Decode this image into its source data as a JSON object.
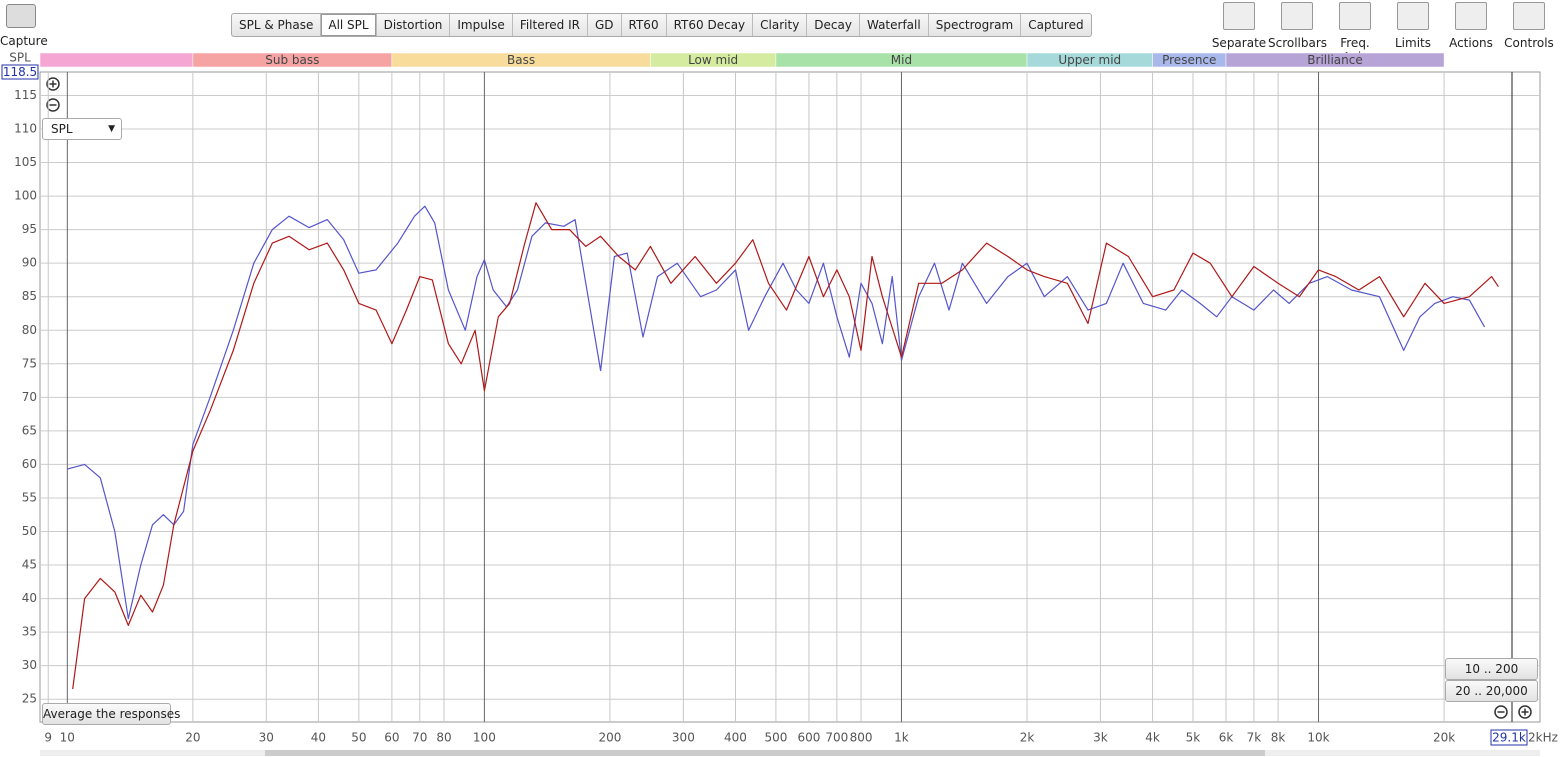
{
  "toolbar": {
    "capture": "Capture",
    "tabs": [
      "SPL & Phase",
      "All SPL",
      "Distortion",
      "Impulse",
      "Filtered IR",
      "GD",
      "RT60",
      "RT60 Decay",
      "Clarity",
      "Decay",
      "Waterfall",
      "Spectrogram",
      "Captured"
    ],
    "selected_tab": "All SPL",
    "tools": [
      "Separate",
      "Scrollbars",
      "Freq. Axis",
      "Limits",
      "Actions",
      "Controls"
    ]
  },
  "controls": {
    "y_axis_name": "SPL",
    "dropdown": "SPL",
    "average_button": "Average the responses",
    "range_buttons": [
      "10 .. 200",
      "20 .. 20,000"
    ],
    "freq_end": "29.1k",
    "freq_unit": "2kHz"
  },
  "chart_data": {
    "type": "line",
    "log_x": true,
    "grid": true,
    "bands": [
      {
        "name": null,
        "from": 8.6,
        "to": 20,
        "color": "#f6a6d2"
      },
      {
        "name": "Sub bass",
        "from": 20,
        "to": 60,
        "color": "#f5a3a3"
      },
      {
        "name": "Bass",
        "from": 60,
        "to": 250,
        "color": "#f7dc9c"
      },
      {
        "name": "Low mid",
        "from": 250,
        "to": 500,
        "color": "#d5eca0"
      },
      {
        "name": "Mid",
        "from": 500,
        "to": 2000,
        "color": "#a8e2a8"
      },
      {
        "name": "Upper mid",
        "from": 2000,
        "to": 4000,
        "color": "#a6dada"
      },
      {
        "name": "Presence",
        "from": 4000,
        "to": 6000,
        "color": "#a9b8ea"
      },
      {
        "name": "Brilliance",
        "from": 6000,
        "to": 20000,
        "color": "#b6a4d6"
      }
    ],
    "xlim": [
      8.6,
      29100
    ],
    "ylim": [
      21.6,
      118.5
    ],
    "xticks": [
      9,
      10,
      20,
      30,
      40,
      50,
      60,
      70,
      80,
      100,
      200,
      300,
      400,
      500,
      600,
      700,
      800,
      {
        "value": 1000,
        "label": "1k"
      },
      {
        "value": 2000,
        "label": "2k"
      },
      {
        "value": 3000,
        "label": "3k"
      },
      {
        "value": 4000,
        "label": "4k"
      },
      {
        "value": 5000,
        "label": "5k"
      },
      {
        "value": 6000,
        "label": "6k"
      },
      {
        "value": 7000,
        "label": "7k"
      },
      {
        "value": 8000,
        "label": "8k"
      },
      {
        "value": 10000,
        "label": "10k"
      },
      {
        "value": 20000,
        "label": "20k"
      }
    ],
    "yticks": [
      25,
      30,
      35,
      40,
      45,
      50,
      55,
      60,
      65,
      70,
      75,
      80,
      85,
      90,
      95,
      100,
      105,
      110,
      115
    ],
    "series": [
      {
        "color": "#5555cc",
        "x": [
          10,
          11,
          12,
          13,
          14,
          15,
          16,
          17,
          18,
          19,
          20,
          22,
          25,
          28,
          31,
          34,
          38,
          42,
          46,
          50,
          55,
          62,
          68,
          72,
          76,
          82,
          90,
          96,
          100,
          105,
          113,
          120,
          130,
          140,
          155,
          165,
          175,
          190,
          205,
          220,
          240,
          260,
          290,
          330,
          360,
          400,
          430,
          470,
          520,
          560,
          600,
          650,
          700,
          750,
          800,
          850,
          900,
          950,
          1000,
          1100,
          1200,
          1300,
          1400,
          1600,
          1800,
          2000,
          2200,
          2500,
          2800,
          3100,
          3400,
          3800,
          4300,
          4700,
          5200,
          5700,
          6200,
          7000,
          7800,
          8500,
          9500,
          10500,
          12000,
          14000,
          16000,
          17500,
          19000,
          21000,
          23000,
          25000
        ],
        "values": [
          59.3,
          60,
          58,
          50,
          37,
          45,
          51,
          52.5,
          51,
          53,
          63,
          70,
          80,
          90,
          95,
          97,
          95.3,
          96.5,
          93.5,
          88.5,
          89,
          93,
          97,
          98.5,
          96,
          86,
          80,
          88,
          90.5,
          86,
          83.5,
          86,
          94,
          96,
          95.5,
          96.5,
          87,
          74,
          91,
          91.5,
          79,
          88,
          90,
          85,
          86,
          89,
          80,
          85,
          90,
          86,
          84,
          90,
          82,
          76,
          87,
          84,
          78,
          88,
          75.5,
          85,
          90,
          83,
          90,
          84,
          88,
          90,
          85,
          88,
          83,
          84,
          90,
          84,
          83,
          86,
          84,
          82,
          85,
          83,
          86,
          84,
          87,
          88,
          86,
          85,
          77,
          82,
          84,
          85,
          84.5,
          80.5
        ]
      },
      {
        "color": "#b01818",
        "x": [
          10.3,
          11,
          12,
          13,
          14,
          15,
          16,
          17,
          18,
          20,
          22,
          25,
          28,
          31,
          34,
          38,
          42,
          46,
          50,
          55,
          60,
          65,
          70,
          75,
          82,
          88,
          95,
          100,
          108,
          115,
          125,
          133,
          145,
          160,
          175,
          190,
          210,
          230,
          250,
          280,
          320,
          360,
          400,
          440,
          480,
          530,
          600,
          650,
          700,
          750,
          800,
          850,
          900,
          1000,
          1100,
          1250,
          1400,
          1600,
          1800,
          2000,
          2200,
          2500,
          2800,
          3100,
          3500,
          4000,
          4500,
          5000,
          5500,
          6200,
          7000,
          8000,
          9000,
          10000,
          11000,
          12500,
          14000,
          16000,
          18000,
          20000,
          23000,
          26000,
          27000
        ],
        "values": [
          26.5,
          40,
          43,
          41,
          36,
          40.5,
          38,
          42,
          51,
          62,
          68,
          77,
          87,
          93,
          94,
          92,
          93,
          89,
          84,
          83,
          78,
          83,
          88,
          87.5,
          78,
          75,
          80,
          71,
          82,
          84,
          93,
          99,
          95,
          95,
          92.5,
          94,
          91,
          89,
          92.5,
          87,
          91,
          87,
          90,
          93.5,
          87,
          83,
          91,
          85,
          89,
          85,
          77,
          91,
          85,
          76,
          87,
          87,
          89,
          93,
          91,
          89,
          88,
          87,
          81,
          93,
          91,
          85,
          86,
          91.5,
          90,
          85,
          89.5,
          87,
          85,
          89,
          88,
          86,
          88,
          82,
          87,
          84,
          85,
          88,
          86.5
        ]
      }
    ]
  }
}
